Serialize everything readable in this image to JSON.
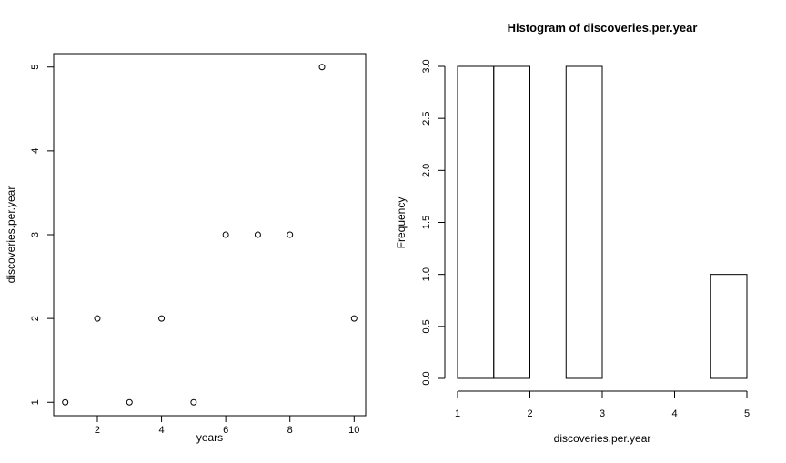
{
  "chart_data": [
    {
      "type": "scatter",
      "title": "",
      "xlabel": "years",
      "ylabel": "discoveries.per.year",
      "x": [
        1,
        2,
        3,
        4,
        5,
        6,
        7,
        8,
        9,
        10
      ],
      "y": [
        1,
        2,
        1,
        2,
        1,
        3,
        3,
        3,
        5,
        2
      ],
      "xlim": [
        0.64,
        10.36
      ],
      "ylim": [
        0.84,
        5.16
      ],
      "xticks": [
        2,
        4,
        6,
        8,
        10
      ],
      "yticks": [
        1,
        2,
        3,
        4,
        5
      ],
      "marker": "open-circle",
      "grid": false,
      "box": true
    },
    {
      "type": "bar",
      "title": "Histogram of discoveries.per.year",
      "xlabel": "discoveries.per.year",
      "ylabel": "Frequency",
      "bins": [
        {
          "from": 1.0,
          "to": 1.5,
          "count": 3
        },
        {
          "from": 1.5,
          "to": 2.0,
          "count": 3
        },
        {
          "from": 2.0,
          "to": 2.5,
          "count": 0
        },
        {
          "from": 2.5,
          "to": 3.0,
          "count": 3
        },
        {
          "from": 3.0,
          "to": 3.5,
          "count": 0
        },
        {
          "from": 3.5,
          "to": 4.0,
          "count": 0
        },
        {
          "from": 4.0,
          "to": 4.5,
          "count": 0
        },
        {
          "from": 4.5,
          "to": 5.0,
          "count": 1
        }
      ],
      "xlim": [
        1,
        5
      ],
      "ylim": [
        0,
        3
      ],
      "xticks": [
        1,
        2,
        3,
        4,
        5
      ],
      "yticks": [
        "0.0",
        "0.5",
        "1.0",
        "1.5",
        "2.0",
        "2.5",
        "3.0"
      ],
      "grid": false,
      "box": false
    }
  ]
}
